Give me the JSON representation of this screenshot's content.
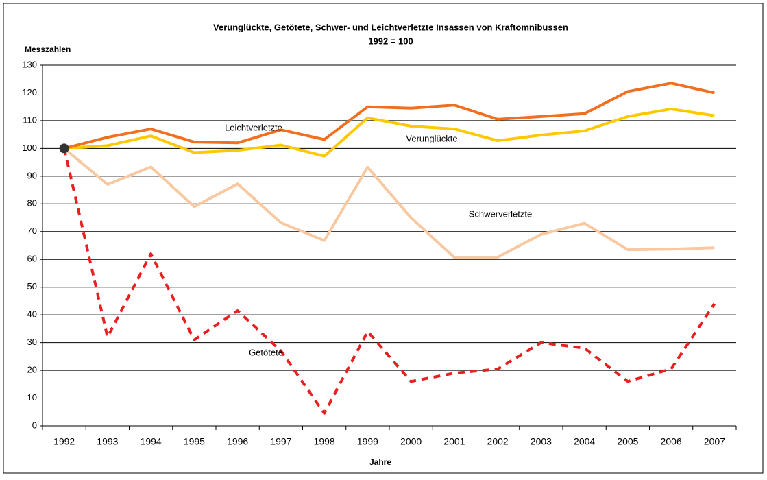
{
  "chart_data": {
    "type": "line",
    "title": "Verunglückte, Getötete, Schwer- und Leichtverletzte Insassen von Kraftomnibussen",
    "subtitle": "1992 = 100",
    "y_label": "Messzahlen",
    "x_label": "Jahre",
    "categories": [
      "1992",
      "1993",
      "1994",
      "1995",
      "1996",
      "1997",
      "1998",
      "1999",
      "2000",
      "2001",
      "2002",
      "2003",
      "2004",
      "2005",
      "2006",
      "2007"
    ],
    "series": [
      {
        "name": "Leichtverletzte",
        "color": "#f07020",
        "dashed": false,
        "values": [
          100,
          104,
          107,
          102.3,
          102,
          106.7,
          103.2,
          115,
          114.5,
          115.6,
          110.5,
          111.5,
          112.5,
          120.5,
          123.5,
          120
        ]
      },
      {
        "name": "Verunglückte",
        "color": "#ffc800",
        "dashed": false,
        "values": [
          100,
          101,
          104.5,
          98.5,
          99.3,
          101.2,
          97.2,
          111,
          108,
          107,
          102.8,
          104.8,
          106.3,
          111.5,
          114.2,
          111.8
        ]
      },
      {
        "name": "Schwerverletzte",
        "color": "#f8c8a0",
        "dashed": false,
        "values": [
          100,
          87,
          93.3,
          79,
          87.2,
          73.2,
          66.8,
          93.2,
          75,
          60.7,
          60.8,
          69,
          73,
          63.5,
          63.7,
          64.2
        ]
      },
      {
        "name": "Getötete",
        "color": "#e82020",
        "dashed": true,
        "values": [
          100,
          32,
          62,
          31,
          41.5,
          27,
          4.5,
          34,
          16,
          19,
          20.5,
          30,
          28,
          16,
          20.5,
          44
        ]
      }
    ],
    "ylim": [
      0,
      130
    ],
    "yticks": [
      0,
      10,
      20,
      30,
      40,
      50,
      60,
      70,
      80,
      90,
      100,
      110,
      120,
      130
    ],
    "grid": true
  }
}
